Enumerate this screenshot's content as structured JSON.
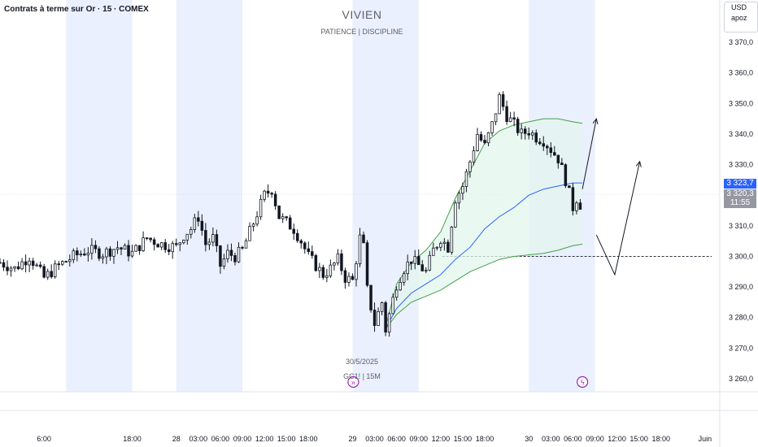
{
  "header": {
    "symbol_title": "Contrats à terme sur Or · 15 · COMEX",
    "currency": "USD",
    "unit": "apoz"
  },
  "watermark": {
    "title": "VIVIEN",
    "subtitle": "PATIENCE  |  DISCIPLINE",
    "date": "30/5/2025",
    "symbol": "GC1! | 15M"
  },
  "price_labels": {
    "bid": "3 323,7",
    "last": "3 320,3",
    "countdown": "11:55"
  },
  "colors": {
    "session_shade": "#eaf0fd",
    "candle": "#131722",
    "vwap": "#2962ff",
    "band": "#43a047",
    "band_fill": "#e3f5ee",
    "bid_box": "#2962ff",
    "last_box": "#9598a1",
    "event_icon": "#9c27b0"
  },
  "icons": [
    "event-arrow-icon",
    "event-lightning-icon"
  ],
  "chart_data": {
    "type": "candlestick",
    "y_axis": {
      "ticks": [
        "3 370,0",
        "3 360,0",
        "3 350,0",
        "3 340,0",
        "3 330,0",
        "3 320,0",
        "3 310,0",
        "3 300,0",
        "3 290,0",
        "3 280,0",
        "3 270,0",
        "3 260,0"
      ],
      "values": [
        3370,
        3360,
        3350,
        3340,
        3330,
        3320,
        3310,
        3300,
        3290,
        3280,
        3270,
        3260
      ],
      "range": [
        3255,
        3378
      ]
    },
    "x_axis": {
      "labels": [
        "6:00",
        "18:00",
        "28",
        "03:00",
        "06:00",
        "09:00",
        "12:00",
        "15:00",
        "18:00",
        "29",
        "03:00",
        "06:00",
        "09:00",
        "12:00",
        "15:00",
        "18:00",
        "30",
        "03:00",
        "06:00",
        "09:00",
        "12:00",
        "15:00",
        "18:00",
        "Juin"
      ],
      "label_hours": [
        -18,
        -6,
        0,
        3,
        6,
        9,
        12,
        15,
        18,
        24,
        27,
        30,
        33,
        36,
        39,
        42,
        48,
        51,
        54,
        57,
        60,
        63,
        66,
        72
      ],
      "range_hours": [
        -24,
        74
      ]
    },
    "sessions_hours": [
      [
        -15,
        -6
      ],
      [
        0,
        9
      ],
      [
        24,
        33
      ],
      [
        48,
        57
      ]
    ],
    "key_level": 3300,
    "bid_price": 3323.7,
    "last_price": 3320.3,
    "anchored_vwap": {
      "x": [
        28.4,
        30,
        32,
        34,
        36,
        38,
        40,
        42,
        44,
        46,
        48,
        50,
        52,
        54,
        55.3
      ],
      "vwap": [
        3276,
        3283,
        3288,
        3291,
        3294,
        3299,
        3303,
        3309,
        3313,
        3316,
        3320,
        3322,
        3323,
        3324,
        3324
      ],
      "upper": [
        3276,
        3291,
        3298,
        3302,
        3308,
        3319,
        3328,
        3337,
        3341,
        3343,
        3344,
        3345,
        3345,
        3344,
        3343.5
      ],
      "lower": [
        3276,
        3281,
        3285,
        3287,
        3289,
        3292,
        3295,
        3297,
        3299,
        3300,
        3300.5,
        3301,
        3302,
        3303.5,
        3304
      ]
    },
    "projection_paths": [
      {
        "x": [
          55.3,
          57.2
        ],
        "y": [
          3322,
          3345
        ]
      },
      {
        "x": [
          57.2,
          59.7,
          63.1
        ],
        "y": [
          3307,
          3294,
          3331
        ]
      }
    ],
    "close_series": [
      {
        "t": -24,
        "c": 3298
      },
      {
        "t": -22,
        "c": 3296
      },
      {
        "t": -20,
        "c": 3300
      },
      {
        "t": -18,
        "c": 3293
      },
      {
        "t": -16,
        "c": 3297
      },
      {
        "t": -14,
        "c": 3300
      },
      {
        "t": -12,
        "c": 3302
      },
      {
        "t": -10,
        "c": 3301
      },
      {
        "t": -8,
        "c": 3303
      },
      {
        "t": -6,
        "c": 3301
      },
      {
        "t": -4,
        "c": 3306
      },
      {
        "t": -2,
        "c": 3304
      },
      {
        "t": 0,
        "c": 3303
      },
      {
        "t": 1,
        "c": 3307
      },
      {
        "t": 2,
        "c": 3309
      },
      {
        "t": 3,
        "c": 3313
      },
      {
        "t": 4,
        "c": 3304
      },
      {
        "t": 5,
        "c": 3306
      },
      {
        "t": 6,
        "c": 3297
      },
      {
        "t": 7,
        "c": 3301
      },
      {
        "t": 8,
        "c": 3300
      },
      {
        "t": 9,
        "c": 3302
      },
      {
        "t": 10,
        "c": 3308
      },
      {
        "t": 11,
        "c": 3314
      },
      {
        "t": 12,
        "c": 3320
      },
      {
        "t": 13,
        "c": 3322
      },
      {
        "t": 14,
        "c": 3313
      },
      {
        "t": 15,
        "c": 3311
      },
      {
        "t": 16,
        "c": 3309
      },
      {
        "t": 17,
        "c": 3305
      },
      {
        "t": 18,
        "c": 3300
      },
      {
        "t": 19,
        "c": 3297
      },
      {
        "t": 20,
        "c": 3294
      },
      {
        "t": 21,
        "c": 3296
      },
      {
        "t": 22,
        "c": 3299
      },
      {
        "t": 23,
        "c": 3293
      },
      {
        "t": 24,
        "c": 3292
      },
      {
        "t": 25,
        "c": 3306
      },
      {
        "t": 25.5,
        "c": 3303
      },
      {
        "t": 26,
        "c": 3289
      },
      {
        "t": 27,
        "c": 3278
      },
      {
        "t": 28,
        "c": 3285
      },
      {
        "t": 28.5,
        "c": 3276
      },
      {
        "t": 29,
        "c": 3281
      },
      {
        "t": 30,
        "c": 3291
      },
      {
        "t": 31,
        "c": 3296
      },
      {
        "t": 32,
        "c": 3299
      },
      {
        "t": 33,
        "c": 3297
      },
      {
        "t": 34,
        "c": 3295
      },
      {
        "t": 35,
        "c": 3302
      },
      {
        "t": 36,
        "c": 3306
      },
      {
        "t": 37,
        "c": 3303
      },
      {
        "t": 38,
        "c": 3319
      },
      {
        "t": 39,
        "c": 3323
      },
      {
        "t": 40,
        "c": 3331
      },
      {
        "t": 41,
        "c": 3340
      },
      {
        "t": 42,
        "c": 3336
      },
      {
        "t": 43,
        "c": 3343
      },
      {
        "t": 44,
        "c": 3352
      },
      {
        "t": 45,
        "c": 3346
      },
      {
        "t": 46,
        "c": 3343
      },
      {
        "t": 47,
        "c": 3340
      },
      {
        "t": 48,
        "c": 3341
      },
      {
        "t": 49,
        "c": 3339
      },
      {
        "t": 50,
        "c": 3338
      },
      {
        "t": 51,
        "c": 3335
      },
      {
        "t": 52,
        "c": 3332
      },
      {
        "t": 53,
        "c": 3325
      },
      {
        "t": 54,
        "c": 3316
      },
      {
        "t": 54.5,
        "c": 3319
      },
      {
        "t": 55,
        "c": 3317
      },
      {
        "t": 55.3,
        "c": 3320
      }
    ]
  }
}
